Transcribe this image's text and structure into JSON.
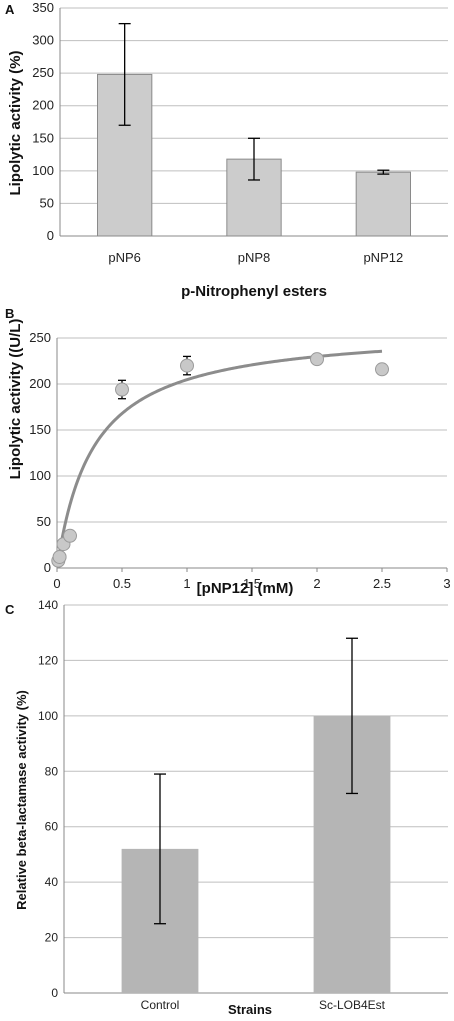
{
  "chart_data": [
    {
      "panel": "A",
      "type": "bar",
      "categories": [
        "pNP6",
        "pNP8",
        "pNP12"
      ],
      "values": [
        248,
        118,
        98
      ],
      "errors": [
        78,
        32,
        3
      ],
      "xlabel": "p-Nitrophenyl esters",
      "ylabel": "Lipolytic activity (%)",
      "ylim": [
        0,
        350
      ],
      "yticks": [
        "0",
        "50",
        "100",
        "150",
        "200",
        "250",
        "300",
        "350"
      ],
      "grid": true,
      "bar_color": "#cccccc"
    },
    {
      "panel": "B",
      "type": "scatter",
      "points": [
        {
          "x": 0.01,
          "y": 8,
          "err": 0
        },
        {
          "x": 0.02,
          "y": 12,
          "err": 0
        },
        {
          "x": 0.05,
          "y": 26,
          "err": 0
        },
        {
          "x": 0.1,
          "y": 35,
          "err": 0
        },
        {
          "x": 0.5,
          "y": 194,
          "err": 10
        },
        {
          "x": 1,
          "y": 220,
          "err": 10
        },
        {
          "x": 2,
          "y": 227,
          "err": 3
        },
        {
          "x": 2.5,
          "y": 216,
          "err": 3
        }
      ],
      "fit_curve": {
        "vmax": 262,
        "km": 0.28
      },
      "xlabel": "[pNP12] (mM)",
      "ylabel": "Lipolytic activity ((U/L)",
      "xlim": [
        0,
        3
      ],
      "ylim": [
        0,
        250
      ],
      "xticks": [
        "0",
        "0.5",
        "1",
        "1.5",
        "2",
        "2.5",
        "3"
      ],
      "yticks": [
        "0",
        "50",
        "100",
        "150",
        "200",
        "250"
      ],
      "grid": true,
      "point_color": "#c8c8c8",
      "line_color": "#8c8c8c"
    },
    {
      "panel": "C",
      "type": "bar",
      "categories": [
        "Control",
        "Sc-LOB4Est"
      ],
      "values": [
        52,
        100
      ],
      "errors": [
        27,
        28
      ],
      "xlabel": "Strains",
      "ylabel": "Relative beta-lactamase activity (%)",
      "ylim": [
        0,
        140
      ],
      "yticks": [
        "0",
        "20",
        "40",
        "60",
        "80",
        "100",
        "120",
        "140"
      ],
      "grid": true,
      "bar_color": "#b5b5b5"
    }
  ],
  "colors": {
    "grid": "#bfbfbf",
    "axis": "#888888",
    "error_bar": "#000000"
  }
}
